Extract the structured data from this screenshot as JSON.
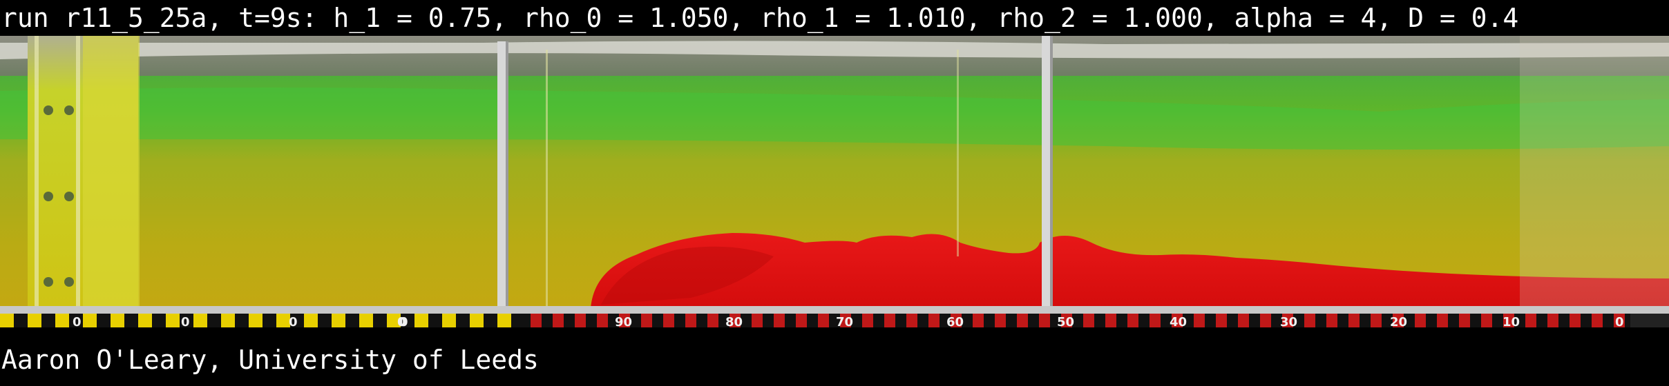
{
  "header": {
    "caption": "run r11_5_25a, t=9s: h_1 = 0.75, rho_0 = 1.050, rho_1 = 1.010, rho_2 = 1.000, alpha = 4, D = 0.4"
  },
  "footer": {
    "credit": "Aaron O'Leary, University of Leeds"
  },
  "ruler": {
    "labels": [
      "0",
      "0",
      "0",
      "0",
      "0",
      "90",
      "80",
      "70",
      "60",
      "50",
      "40",
      "30",
      "20",
      "10",
      "0"
    ]
  },
  "colors": {
    "upper_layer": "#3fbf3a",
    "middle_layer": "#b8b21a",
    "lower_current": "#e01010",
    "ruler_red": "#c01818",
    "ruler_yellow": "#e8d000"
  }
}
